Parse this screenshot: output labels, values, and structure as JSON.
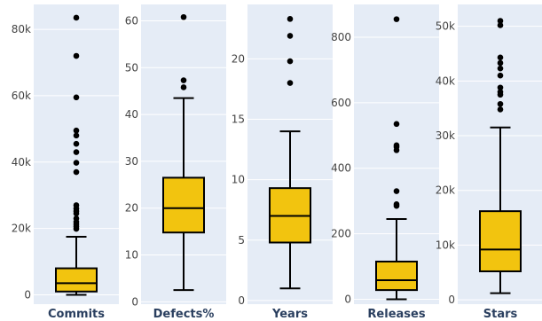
{
  "chart_data": [
    {
      "type": "box",
      "category": "Commits",
      "ylim": [
        -2800,
        87500
      ],
      "ticks": [
        0,
        20000,
        40000,
        60000,
        80000
      ],
      "tick_labels": [
        "0",
        "20k",
        "40k",
        "60k",
        "80k"
      ],
      "box": {
        "min": 0,
        "q1": 1000,
        "median": 3500,
        "q3": 8000,
        "max": 17500
      },
      "outliers": [
        83500,
        72000,
        59500,
        49500,
        48000,
        45500,
        43000,
        39800,
        37000,
        27000,
        26000,
        25200,
        24500,
        23000,
        22000,
        21300,
        20600,
        19900
      ]
    },
    {
      "type": "box",
      "category": "Defects%",
      "ylim": [
        -0.5,
        63.5
      ],
      "ticks": [
        0,
        10,
        20,
        30,
        40,
        50,
        60
      ],
      "tick_labels": [
        "0",
        "10",
        "20",
        "30",
        "40",
        "50",
        "60"
      ],
      "box": {
        "min": 2.5,
        "q1": 14.8,
        "median": 20.0,
        "q3": 26.5,
        "max": 43.5
      },
      "outliers": [
        60.8,
        47.3,
        45.8
      ]
    },
    {
      "type": "box",
      "category": "Years",
      "ylim": [
        -0.3,
        24.5
      ],
      "ticks": [
        0,
        5,
        10,
        15,
        20
      ],
      "tick_labels": [
        "0",
        "5",
        "10",
        "15",
        "20"
      ],
      "box": {
        "min": 1.0,
        "q1": 4.8,
        "median": 7.0,
        "q3": 9.3,
        "max": 14.0
      },
      "outliers": [
        23.3,
        21.9,
        19.8,
        18.0
      ]
    },
    {
      "type": "box",
      "category": "Releases",
      "ylim": [
        -15,
        900
      ],
      "ticks": [
        0,
        200,
        400,
        600,
        800
      ],
      "tick_labels": [
        "0",
        "200",
        "400",
        "600",
        "800"
      ],
      "box": {
        "min": 0,
        "q1": 28,
        "median": 58,
        "q3": 115,
        "max": 245
      },
      "outliers": [
        855,
        535,
        470,
        465,
        455,
        330,
        290,
        285
      ]
    },
    {
      "type": "box",
      "category": "Stars",
      "ylim": [
        -800,
        54000
      ],
      "ticks": [
        0,
        10000,
        20000,
        30000,
        40000,
        50000
      ],
      "tick_labels": [
        "0",
        "10k",
        "20k",
        "30k",
        "40k",
        "50k"
      ],
      "box": {
        "min": 1200,
        "q1": 5200,
        "median": 9200,
        "q3": 16200,
        "max": 31500
      },
      "outliers": [
        51000,
        50200,
        44300,
        43300,
        42300,
        41000,
        38800,
        38000,
        37500,
        35800,
        34800
      ]
    }
  ],
  "colors": {
    "plot_bg": "#e5ecf6",
    "grid": "#ffffff",
    "box_fill": "#f2c40f",
    "box_line": "#000000",
    "outlier": "#000000",
    "tick_text": "#444444",
    "category_text": "#2a3f5f"
  }
}
